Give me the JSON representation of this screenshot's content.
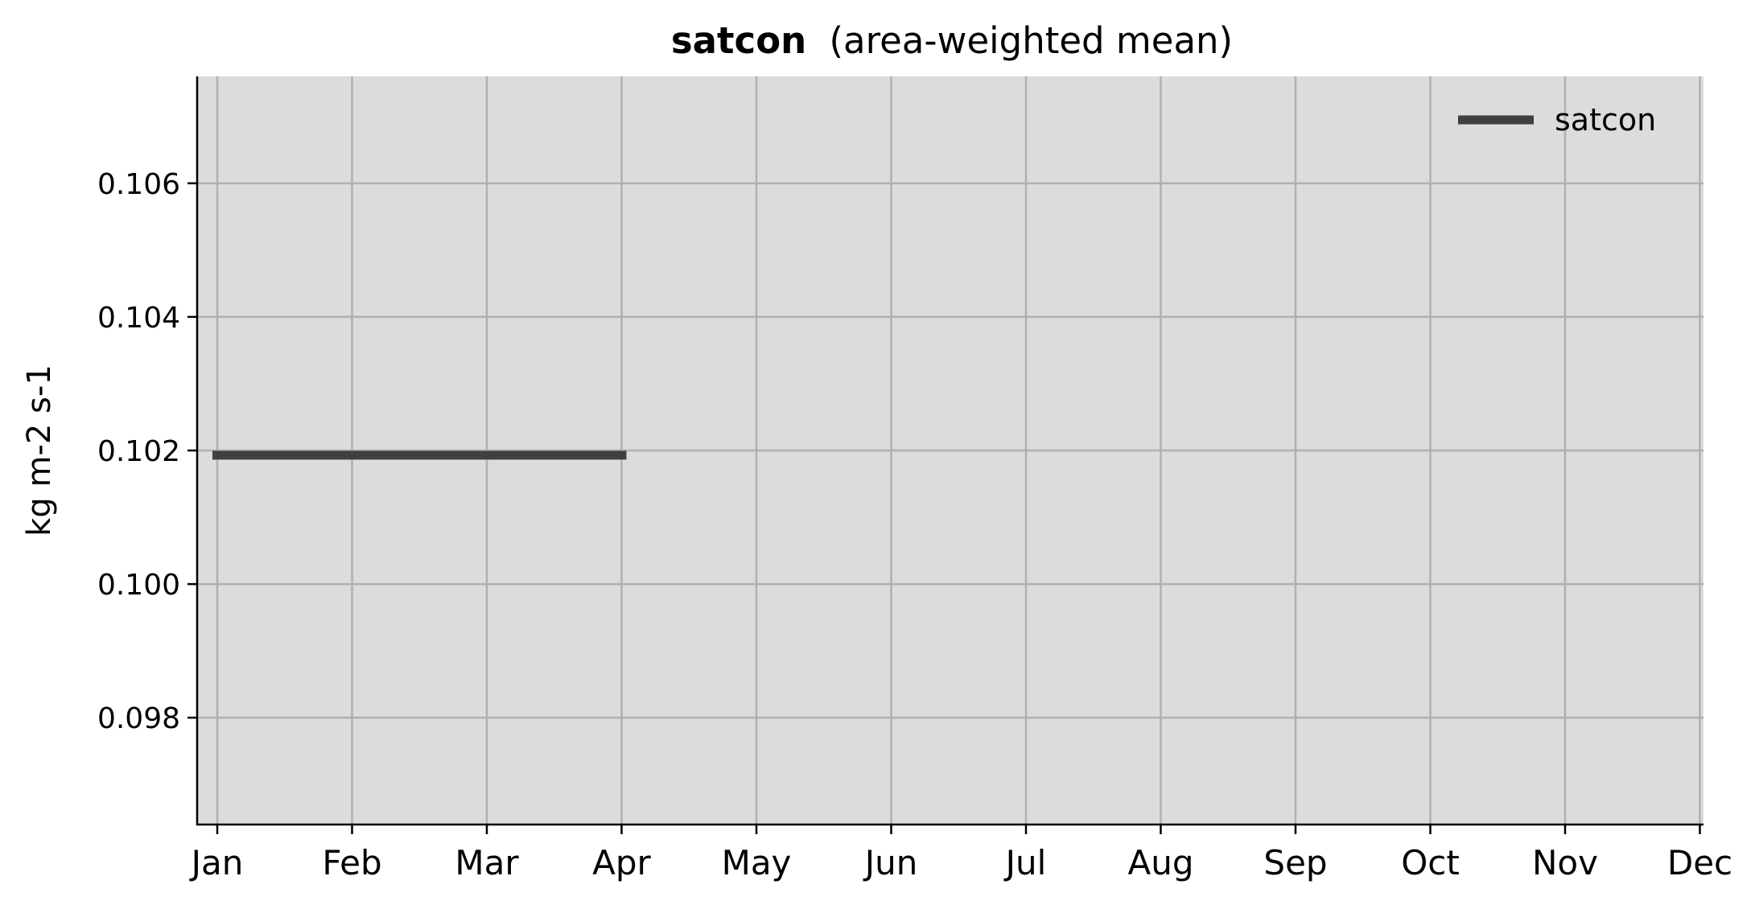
{
  "chart_data": {
    "type": "line",
    "title": "satcon",
    "subtitle": "(area-weighted mean)",
    "xlabel": "",
    "ylabel": "kg m-2 s-1",
    "x_categories": [
      "Jan",
      "Feb",
      "Mar",
      "Apr",
      "May",
      "Jun",
      "Jul",
      "Aug",
      "Sep",
      "Oct",
      "Nov",
      "Dec"
    ],
    "ylim": [
      0.0964,
      0.1076
    ],
    "yticks": [
      0.098,
      0.1,
      0.102,
      0.104,
      0.106
    ],
    "ytick_labels": [
      "0.098",
      "0.100",
      "0.102",
      "0.104",
      "0.106"
    ],
    "grid": true,
    "legend_position": "top-right",
    "series": [
      {
        "name": "satcon",
        "color": "#404040",
        "x": [
          "Jan",
          "Feb",
          "Mar",
          "Apr"
        ],
        "values": [
          0.10193,
          0.10193,
          0.10193,
          0.10193
        ]
      }
    ],
    "colors": {
      "plot_background": "#dcdcdc",
      "grid": "#b0b0b0",
      "axis": "#000000"
    }
  }
}
